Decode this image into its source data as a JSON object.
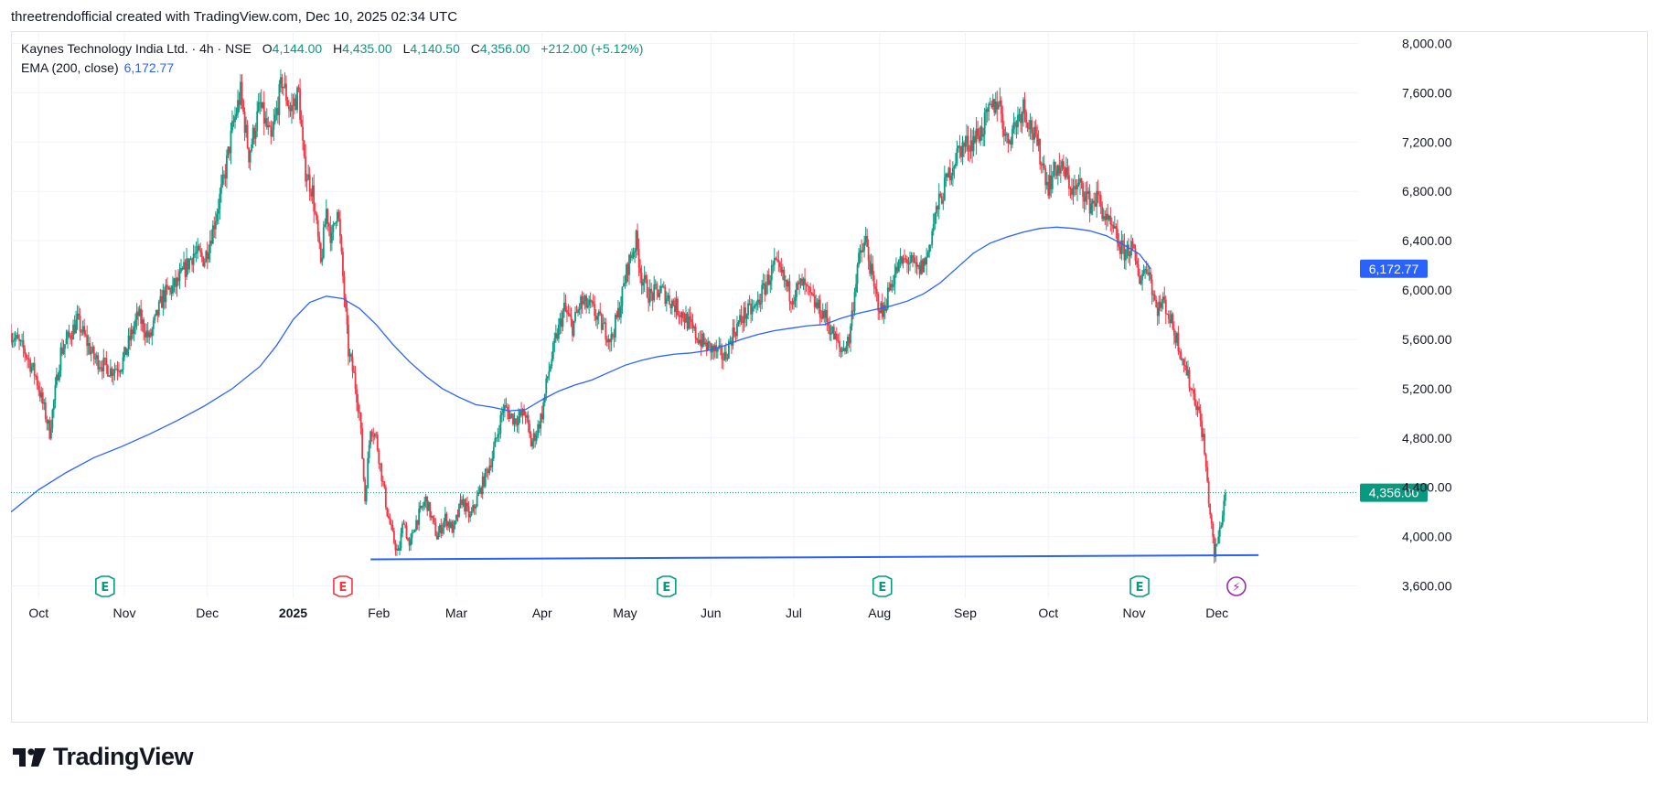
{
  "caption": "threetrendofficial created with TradingView.com, Dec 10, 2025 02:34 UTC",
  "legend": {
    "symbol": "Kaynes Technology India Ltd. · 4h · NSE",
    "open_label": "O",
    "open": "4,144.00",
    "high_label": "H",
    "high": "4,435.00",
    "low_label": "L",
    "low": "4,140.50",
    "close_label": "C",
    "close": "4,356.00",
    "change": "+212.00 (+5.12%)",
    "ema_label": "EMA (200, close)",
    "ema_value": "6,172.77"
  },
  "brand": "TradingView",
  "colors": {
    "up": "#089981",
    "down": "#f23645",
    "ema": "#2962ff",
    "grid": "#f0f3fa",
    "axis_text": "#131722",
    "event": "#089981",
    "event_neg": "#f23645",
    "event_flash": "#9c27b0"
  },
  "chart_data": {
    "type": "candlestick",
    "symbol": "Kaynes Technology India Ltd.",
    "interval": "4h",
    "exchange": "NSE",
    "ylim": [
      3500,
      8100
    ],
    "yticks": [
      3600,
      4000,
      4400,
      4800,
      5200,
      5600,
      6000,
      6400,
      6800,
      7200,
      7600,
      8000
    ],
    "ytick_labels": [
      "3,600.00",
      "4,000.00",
      "4,400.00",
      "4,800.00",
      "5,200.00",
      "5,600.00",
      "6,000.00",
      "6,400.00",
      "6,800.00",
      "7,200.00",
      "7,600.00",
      "8,000.00"
    ],
    "xticks": [
      {
        "label": "Oct",
        "x": 0.0,
        "bold": false
      },
      {
        "label": "Nov",
        "x": 31.0,
        "bold": false
      },
      {
        "label": "Dec",
        "x": 61.0,
        "bold": false
      },
      {
        "label": "2025",
        "x": 92.0,
        "bold": true
      },
      {
        "label": "Feb",
        "x": 123.0,
        "bold": false
      },
      {
        "label": "Mar",
        "x": 151.0,
        "bold": false
      },
      {
        "label": "Apr",
        "x": 182.0,
        "bold": false
      },
      {
        "label": "May",
        "x": 212.0,
        "bold": false
      },
      {
        "label": "Jun",
        "x": 243.0,
        "bold": false
      },
      {
        "label": "Jul",
        "x": 273.0,
        "bold": false
      },
      {
        "label": "Aug",
        "x": 304.0,
        "bold": false
      },
      {
        "label": "Sep",
        "x": 335.0,
        "bold": false
      },
      {
        "label": "Oct",
        "x": 365.0,
        "bold": false
      },
      {
        "label": "Nov",
        "x": 396.0,
        "bold": false
      },
      {
        "label": "Dec",
        "x": 426.0,
        "bold": false
      }
    ],
    "xlim": [
      -10,
      477
    ],
    "price_path": [
      [
        -10,
        5650
      ],
      [
        -5,
        5500
      ],
      [
        -1,
        5300
      ],
      [
        4,
        4850
      ],
      [
        8,
        5500
      ],
      [
        14,
        5750
      ],
      [
        20,
        5450
      ],
      [
        26,
        5350
      ],
      [
        30,
        5400
      ],
      [
        36,
        5800
      ],
      [
        40,
        5600
      ],
      [
        45,
        5950
      ],
      [
        50,
        6050
      ],
      [
        56,
        6300
      ],
      [
        60,
        6250
      ],
      [
        63,
        6500
      ],
      [
        67,
        6900
      ],
      [
        70,
        7300
      ],
      [
        73,
        7600
      ],
      [
        76,
        7100
      ],
      [
        80,
        7500
      ],
      [
        84,
        7200
      ],
      [
        88,
        7700
      ],
      [
        91,
        7450
      ],
      [
        94,
        7600
      ],
      [
        96,
        7000
      ],
      [
        99,
        6800
      ],
      [
        102,
        6200
      ],
      [
        104,
        6650
      ],
      [
        106,
        6400
      ],
      [
        108,
        6700
      ],
      [
        110,
        6100
      ],
      [
        112,
        5500
      ],
      [
        114,
        5300
      ],
      [
        116,
        5000
      ],
      [
        118,
        4300
      ],
      [
        120,
        4900
      ],
      [
        122,
        4800
      ],
      [
        124,
        4500
      ],
      [
        126,
        4200
      ],
      [
        128,
        4000
      ],
      [
        130,
        3850
      ],
      [
        132,
        4150
      ],
      [
        134,
        3900
      ],
      [
        136,
        4100
      ],
      [
        140,
        4300
      ],
      [
        144,
        4000
      ],
      [
        147,
        4150
      ],
      [
        150,
        4050
      ],
      [
        153,
        4300
      ],
      [
        156,
        4150
      ],
      [
        160,
        4400
      ],
      [
        164,
        4650
      ],
      [
        168,
        5050
      ],
      [
        172,
        4950
      ],
      [
        176,
        5000
      ],
      [
        178,
        4750
      ],
      [
        180,
        4850
      ],
      [
        182,
        5000
      ],
      [
        184,
        5300
      ],
      [
        187,
        5600
      ],
      [
        190,
        5850
      ],
      [
        193,
        5700
      ],
      [
        196,
        5900
      ],
      [
        200,
        5850
      ],
      [
        204,
        5700
      ],
      [
        207,
        5600
      ],
      [
        210,
        5850
      ],
      [
        213,
        6200
      ],
      [
        216,
        6400
      ],
      [
        218,
        6100
      ],
      [
        221,
        5950
      ],
      [
        225,
        6000
      ],
      [
        229,
        5900
      ],
      [
        233,
        5800
      ],
      [
        237,
        5650
      ],
      [
        241,
        5550
      ],
      [
        245,
        5500
      ],
      [
        248,
        5450
      ],
      [
        251,
        5650
      ],
      [
        255,
        5800
      ],
      [
        259,
        5850
      ],
      [
        263,
        6050
      ],
      [
        266,
        6200
      ],
      [
        269,
        6100
      ],
      [
        272,
        5950
      ],
      [
        276,
        6050
      ],
      [
        280,
        5900
      ],
      [
        284,
        5800
      ],
      [
        287,
        5650
      ],
      [
        290,
        5500
      ],
      [
        293,
        5600
      ],
      [
        296,
        6200
      ],
      [
        299,
        6400
      ],
      [
        302,
        6000
      ],
      [
        305,
        5800
      ],
      [
        308,
        6050
      ],
      [
        311,
        6200
      ],
      [
        314,
        6250
      ],
      [
        318,
        6150
      ],
      [
        321,
        6250
      ],
      [
        324,
        6600
      ],
      [
        327,
        6800
      ],
      [
        330,
        7000
      ],
      [
        333,
        7150
      ],
      [
        337,
        7200
      ],
      [
        341,
        7300
      ],
      [
        344,
        7450
      ],
      [
        347,
        7550
      ],
      [
        350,
        7200
      ],
      [
        353,
        7350
      ],
      [
        356,
        7500
      ],
      [
        359,
        7300
      ],
      [
        362,
        7100
      ],
      [
        365,
        6850
      ],
      [
        368,
        7000
      ],
      [
        371,
        6950
      ],
      [
        374,
        6800
      ],
      [
        377,
        6850
      ],
      [
        380,
        6700
      ],
      [
        383,
        6750
      ],
      [
        386,
        6550
      ],
      [
        389,
        6450
      ],
      [
        392,
        6300
      ],
      [
        395,
        6350
      ],
      [
        398,
        6100
      ],
      [
        401,
        6200
      ],
      [
        404,
        5850
      ],
      [
        407,
        5900
      ],
      [
        410,
        5700
      ],
      [
        413,
        5500
      ],
      [
        416,
        5250
      ],
      [
        419,
        5050
      ],
      [
        421,
        4800
      ],
      [
        423,
        4300
      ],
      [
        425,
        3850
      ],
      [
        427,
        4050
      ],
      [
        429,
        4356
      ]
    ],
    "ema": [
      [
        -10,
        4200
      ],
      [
        0,
        4380
      ],
      [
        10,
        4520
      ],
      [
        20,
        4640
      ],
      [
        30,
        4730
      ],
      [
        40,
        4830
      ],
      [
        50,
        4940
      ],
      [
        60,
        5060
      ],
      [
        70,
        5200
      ],
      [
        80,
        5380
      ],
      [
        86,
        5550
      ],
      [
        92,
        5760
      ],
      [
        98,
        5900
      ],
      [
        104,
        5950
      ],
      [
        110,
        5930
      ],
      [
        116,
        5850
      ],
      [
        122,
        5720
      ],
      [
        128,
        5560
      ],
      [
        134,
        5420
      ],
      [
        140,
        5300
      ],
      [
        146,
        5200
      ],
      [
        152,
        5130
      ],
      [
        158,
        5070
      ],
      [
        164,
        5050
      ],
      [
        170,
        5020
      ],
      [
        176,
        5030
      ],
      [
        182,
        5110
      ],
      [
        188,
        5180
      ],
      [
        194,
        5230
      ],
      [
        200,
        5270
      ],
      [
        206,
        5330
      ],
      [
        212,
        5390
      ],
      [
        218,
        5430
      ],
      [
        224,
        5460
      ],
      [
        230,
        5480
      ],
      [
        236,
        5490
      ],
      [
        242,
        5510
      ],
      [
        248,
        5550
      ],
      [
        254,
        5600
      ],
      [
        260,
        5640
      ],
      [
        266,
        5670
      ],
      [
        272,
        5690
      ],
      [
        278,
        5710
      ],
      [
        284,
        5720
      ],
      [
        290,
        5770
      ],
      [
        296,
        5810
      ],
      [
        302,
        5840
      ],
      [
        308,
        5870
      ],
      [
        314,
        5910
      ],
      [
        320,
        5970
      ],
      [
        326,
        6060
      ],
      [
        332,
        6180
      ],
      [
        338,
        6300
      ],
      [
        344,
        6380
      ],
      [
        350,
        6430
      ],
      [
        356,
        6470
      ],
      [
        362,
        6500
      ],
      [
        368,
        6510
      ],
      [
        374,
        6500
      ],
      [
        380,
        6480
      ],
      [
        386,
        6440
      ],
      [
        392,
        6370
      ],
      [
        398,
        6290
      ],
      [
        402,
        6172.77
      ]
    ],
    "support_line": {
      "from": [
        120,
        3815
      ],
      "to": [
        441,
        3850
      ]
    },
    "last_price": 4356.0,
    "last_price_label": "4,356.00",
    "ema_last": 6172.77,
    "ema_last_label": "6,172.77",
    "events": [
      {
        "x": 24.0,
        "type": "earnings",
        "glyph": "E"
      },
      {
        "x": 110.0,
        "type": "earnings-neg",
        "glyph": "E"
      },
      {
        "x": 227.0,
        "type": "earnings",
        "glyph": "E"
      },
      {
        "x": 305.0,
        "type": "earnings",
        "glyph": "E"
      },
      {
        "x": 398.0,
        "type": "earnings",
        "glyph": "E"
      },
      {
        "x": 433.0,
        "type": "flash",
        "glyph": "⚡"
      }
    ]
  }
}
